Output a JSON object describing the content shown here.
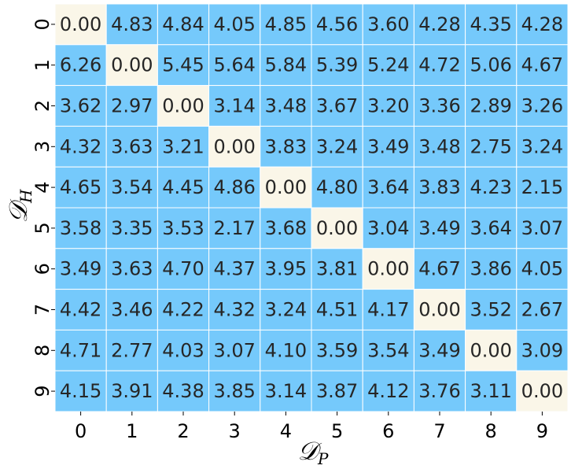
{
  "chart_data": {
    "type": "heatmap",
    "title": "",
    "xlabel_main": "𝒟",
    "xlabel_sub": "P",
    "ylabel_main": "𝒟",
    "ylabel_sub": "H",
    "x_categories": [
      "0",
      "1",
      "2",
      "3",
      "4",
      "5",
      "6",
      "7",
      "8",
      "9"
    ],
    "y_categories": [
      "0",
      "1",
      "2",
      "3",
      "4",
      "5",
      "6",
      "7",
      "8",
      "9"
    ],
    "values": [
      [
        "0.00",
        "4.83",
        "4.84",
        "4.05",
        "4.85",
        "4.56",
        "3.60",
        "4.28",
        "4.35",
        "4.28"
      ],
      [
        "6.26",
        "0.00",
        "5.45",
        "5.64",
        "5.84",
        "5.39",
        "5.24",
        "4.72",
        "5.06",
        "4.67"
      ],
      [
        "3.62",
        "2.97",
        "0.00",
        "3.14",
        "3.48",
        "3.67",
        "3.20",
        "3.36",
        "2.89",
        "3.26"
      ],
      [
        "4.32",
        "3.63",
        "3.21",
        "0.00",
        "3.83",
        "3.24",
        "3.49",
        "3.48",
        "2.75",
        "3.24"
      ],
      [
        "4.65",
        "3.54",
        "4.45",
        "4.86",
        "0.00",
        "4.80",
        "3.64",
        "3.83",
        "4.23",
        "2.15"
      ],
      [
        "3.58",
        "3.35",
        "3.53",
        "2.17",
        "3.68",
        "0.00",
        "3.04",
        "3.49",
        "3.64",
        "3.07"
      ],
      [
        "3.49",
        "3.63",
        "4.70",
        "4.37",
        "3.95",
        "3.81",
        "0.00",
        "4.67",
        "3.86",
        "4.05"
      ],
      [
        "4.42",
        "3.46",
        "4.22",
        "4.32",
        "3.24",
        "4.51",
        "4.17",
        "0.00",
        "3.52",
        "2.67"
      ],
      [
        "4.71",
        "2.77",
        "4.03",
        "3.07",
        "4.10",
        "3.59",
        "3.54",
        "3.49",
        "0.00",
        "3.09"
      ],
      [
        "4.15",
        "3.91",
        "4.38",
        "3.85",
        "3.14",
        "3.87",
        "4.12",
        "3.76",
        "3.11",
        "0.00"
      ]
    ],
    "colors": {
      "diagonal": "#faf6e8",
      "off_diagonal": "#75c9fb",
      "gridline": "#ffffff"
    },
    "legend": "none",
    "grid": false
  }
}
